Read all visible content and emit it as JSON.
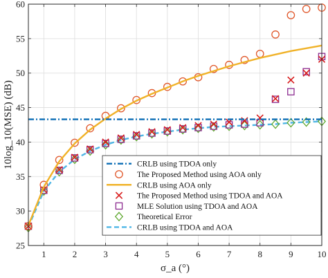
{
  "chart_data": {
    "type": "line",
    "title": "",
    "xlabel": "σ_a (°)",
    "ylabel": "10log_10(MSE) (dB)",
    "xlim": [
      0.5,
      10
    ],
    "ylim": [
      25,
      60
    ],
    "xticks": [
      1,
      2,
      3,
      4,
      5,
      6,
      7,
      8,
      9,
      10
    ],
    "yticks": [
      25,
      30,
      35,
      40,
      45,
      50,
      55,
      60
    ],
    "grid": true,
    "legend_position": "bottom-right",
    "series": [
      {
        "name": "CRLB using TDOA only",
        "style": "dash-dot",
        "color": "#0b6db5",
        "marker": "none",
        "x": [
          0.5,
          10
        ],
        "y": [
          43.3,
          43.3
        ]
      },
      {
        "name": "The Proposed Method using AOA only",
        "style": "none",
        "color": "#e0572a",
        "marker": "circle",
        "x": [
          0.5,
          1,
          1.5,
          2,
          2.5,
          3,
          3.5,
          4,
          4.5,
          5,
          5.5,
          6,
          6.5,
          7,
          7.5,
          8,
          8.5,
          9,
          9.5,
          10
        ],
        "y": [
          27.8,
          33.8,
          37.4,
          39.9,
          42.0,
          43.8,
          44.9,
          46.1,
          47.1,
          48.0,
          48.8,
          49.4,
          50.6,
          51.2,
          51.9,
          52.8,
          55.6,
          58.4,
          59.3,
          59.5
        ]
      },
      {
        "name": "CRLB using AOA only",
        "style": "solid",
        "color": "#f0b228",
        "marker": "none",
        "x": [
          0.5,
          1,
          1.5,
          2,
          2.5,
          3,
          3.5,
          4,
          4.5,
          5,
          5.5,
          6,
          6.5,
          7,
          7.5,
          8,
          8.5,
          9,
          9.5,
          10
        ],
        "y": [
          27.9,
          33.5,
          37.2,
          39.8,
          41.8,
          43.4,
          44.8,
          46.0,
          47.0,
          47.9,
          48.8,
          49.6,
          50.3,
          51.0,
          51.6,
          52.2,
          52.7,
          53.2,
          53.6,
          54.0
        ]
      },
      {
        "name": "The Proposed Method using TDOA and AOA",
        "style": "none",
        "color": "#d81b1b",
        "marker": "x",
        "x": [
          0.5,
          1,
          1.5,
          2,
          2.5,
          3,
          3.5,
          4,
          4.5,
          5,
          5.5,
          6,
          6.5,
          7,
          7.5,
          8,
          8.5,
          9,
          9.5,
          10
        ],
        "y": [
          27.8,
          33.1,
          36.0,
          37.8,
          39.0,
          40.0,
          40.6,
          41.1,
          41.5,
          41.8,
          42.1,
          42.4,
          42.6,
          42.9,
          43.1,
          43.5,
          46.3,
          49.0,
          50.0,
          52.0
        ]
      },
      {
        "name": "MLE Solution using TDOA and AOA",
        "style": "none",
        "color": "#8b2a8f",
        "marker": "square",
        "x": [
          0.5,
          1,
          1.5,
          2,
          2.5,
          3,
          3.5,
          4,
          4.5,
          5,
          5.5,
          6,
          6.5,
          7,
          7.5,
          8,
          8.5,
          9,
          9.5,
          10
        ],
        "y": [
          27.8,
          33.0,
          35.9,
          37.7,
          38.9,
          39.8,
          40.4,
          40.9,
          41.3,
          41.6,
          41.9,
          42.1,
          42.3,
          42.5,
          42.6,
          42.8,
          46.2,
          47.3,
          50.2,
          52.4
        ]
      },
      {
        "name": "Theoretical Error",
        "style": "none",
        "color": "#5fa830",
        "marker": "diamond",
        "x": [
          0.5,
          1,
          1.5,
          2,
          2.5,
          3,
          3.5,
          4,
          4.5,
          5,
          5.5,
          6,
          6.5,
          7,
          7.5,
          8,
          8.5,
          9,
          9.5,
          10
        ],
        "y": [
          27.6,
          32.9,
          35.7,
          37.5,
          38.7,
          39.6,
          40.3,
          40.8,
          41.2,
          41.5,
          41.8,
          42.0,
          42.2,
          42.3,
          42.4,
          42.5,
          42.6,
          42.8,
          42.9,
          43.0
        ]
      },
      {
        "name": "CRLB using TDOA and AOA",
        "style": "dashed",
        "color": "#4fb6e6",
        "marker": "none",
        "x": [
          0.5,
          1,
          1.5,
          2,
          2.5,
          3,
          3.5,
          4,
          4.5,
          5,
          5.5,
          6,
          6.5,
          7,
          7.5,
          8,
          8.5,
          9,
          9.5,
          10
        ],
        "y": [
          27.7,
          32.9,
          35.7,
          37.5,
          38.7,
          39.6,
          40.3,
          40.8,
          41.2,
          41.5,
          41.8,
          42.0,
          42.2,
          42.3,
          42.4,
          42.5,
          42.6,
          42.8,
          42.9,
          43.0
        ]
      }
    ]
  }
}
